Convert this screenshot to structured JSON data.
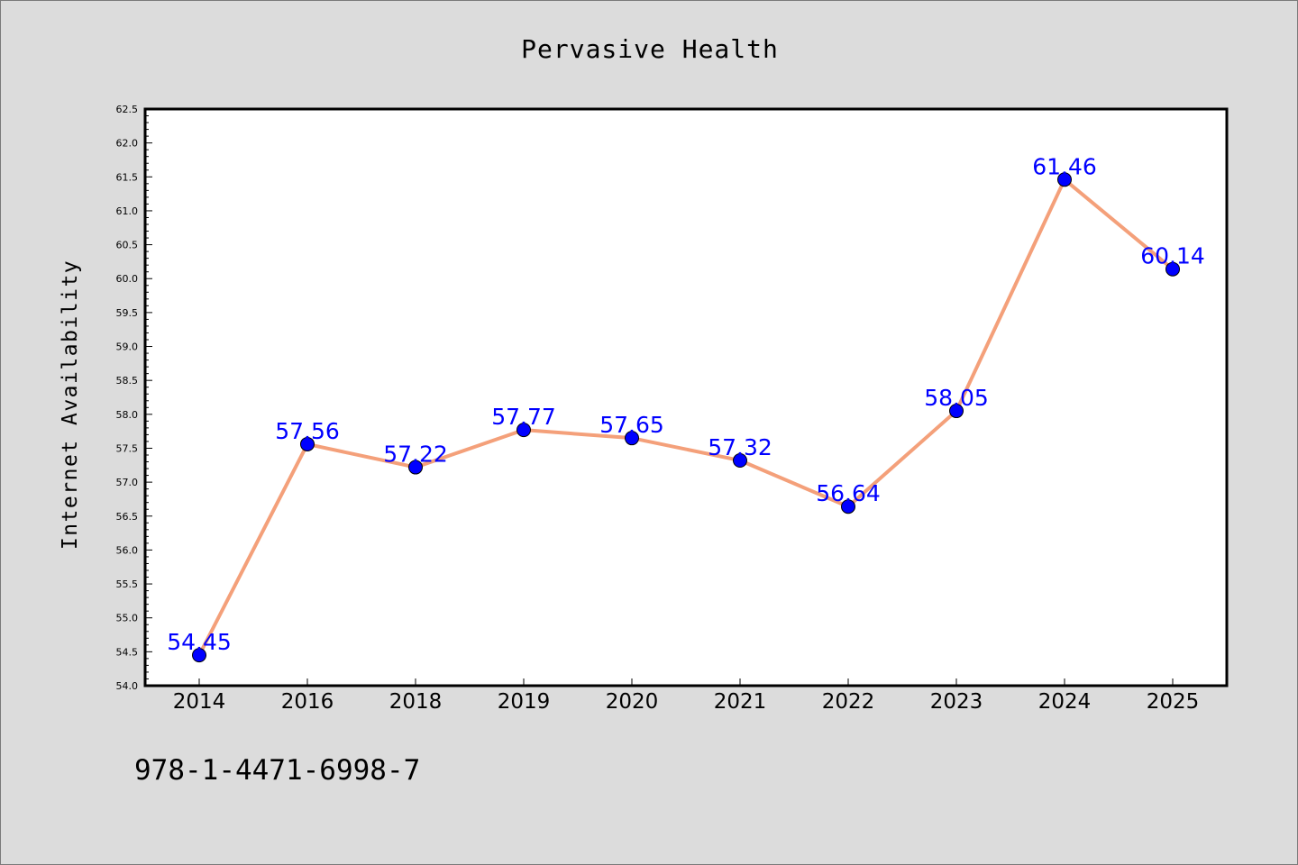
{
  "chart_data": {
    "type": "line",
    "title": "Pervasive Health",
    "xlabel": "",
    "ylabel": "Internet Availability",
    "categories": [
      "2014",
      "2016",
      "2018",
      "2019",
      "2020",
      "2021",
      "2022",
      "2023",
      "2024",
      "2025"
    ],
    "series": [
      {
        "values": [
          54.45,
          57.56,
          57.22,
          57.77,
          57.65,
          57.32,
          56.64,
          58.05,
          61.46,
          60.14
        ],
        "data_labels": [
          "54.45",
          "57.56",
          "57.22",
          "57.77",
          "57.65",
          "57.32",
          "56.64",
          "58.05",
          "61.46",
          "60.14"
        ],
        "line_color": "#f4a07a",
        "marker_color": "#0000ff"
      }
    ],
    "ylim": [
      54.0,
      62.5
    ],
    "yticks": [
      "54.0",
      "54.5",
      "55.0",
      "55.5",
      "56.0",
      "56.5",
      "57.0",
      "57.5",
      "58.0",
      "58.5",
      "59.0",
      "59.5",
      "60.0",
      "60.5",
      "61.0",
      "61.5",
      "62.0",
      "62.5"
    ],
    "grid": false,
    "legend": "none"
  },
  "footer": {
    "isbn": "978-1-4471-6998-7"
  },
  "colors": {
    "background": "#dcdcdc",
    "plot_background": "#ffffff",
    "line": "#f4a07a",
    "marker": "#0000ff",
    "data_label": "#0000ff"
  }
}
